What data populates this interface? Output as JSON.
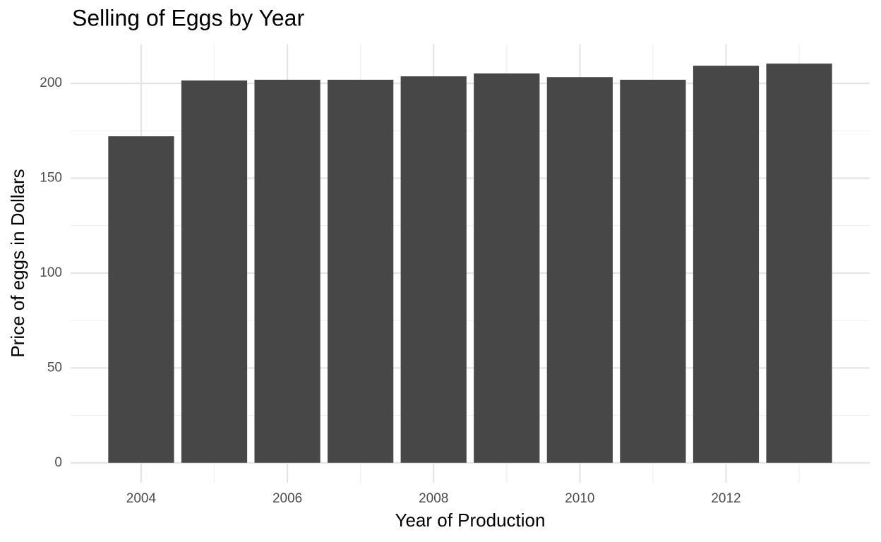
{
  "chart_data": {
    "type": "bar",
    "title": "Selling of Eggs by Year",
    "x_label": "Year of Production",
    "y_label": "Price of eggs in Dollars",
    "x": [
      2004,
      2005,
      2006,
      2007,
      2008,
      2009,
      2010,
      2011,
      2012,
      2013
    ],
    "values": [
      172.1,
      201.5,
      201.9,
      201.9,
      203.7,
      205.2,
      203.3,
      201.9,
      209.3,
      210.4
    ],
    "color": "#474747",
    "xlim": [
      2003.035,
      2013.965
    ],
    "xticks": [
      2004,
      2006,
      2008,
      2010,
      2012
    ],
    "xminor": [
      2005,
      2007,
      2009,
      2011,
      2013
    ],
    "ylim": [
      -10.5,
      220.5
    ],
    "yticks": [
      0,
      50,
      100,
      150,
      200
    ],
    "yminor": [
      25,
      75,
      125,
      175
    ],
    "bar_width": 0.9,
    "grid": true
  }
}
